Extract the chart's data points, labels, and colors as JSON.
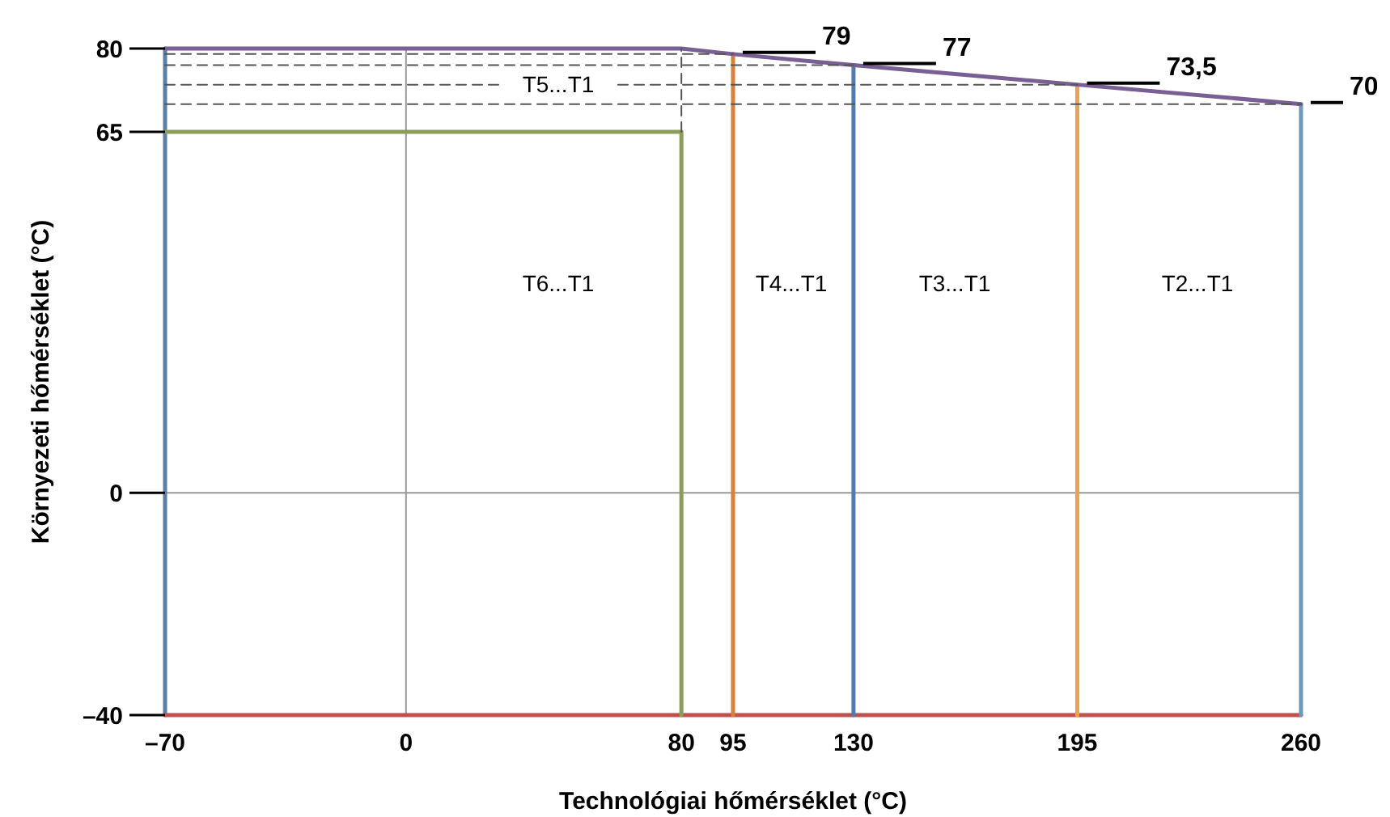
{
  "chart_data": {
    "type": "line",
    "xlabel": "Technológiai hőmérséklet (°C)",
    "ylabel": "Környezeti hőmérséklet (°C)",
    "xlim": [
      -70,
      260
    ],
    "ylim": [
      -40,
      80
    ],
    "xticks": [
      {
        "value": -70,
        "label": "–70"
      },
      0,
      80,
      95,
      130,
      195,
      260
    ],
    "yticks": [
      {
        "value": -40,
        "label": "–40"
      },
      0,
      65,
      80
    ],
    "grid": false,
    "marker": "none",
    "series": [
      {
        "color": "#999999",
        "line_style": "solid",
        "x": [
          0,
          0
        ],
        "values": [
          -40,
          80
        ]
      },
      {
        "color": "#999999",
        "line_style": "solid",
        "x": [
          -70,
          260
        ],
        "values": [
          0,
          0
        ]
      },
      {
        "color": "#5b7fa6",
        "x": [
          -70,
          -70
        ],
        "values": [
          -40,
          80
        ]
      },
      {
        "color": "#c0504d",
        "x": [
          -70,
          260
        ],
        "values": [
          -40,
          -40
        ]
      },
      {
        "color": "#8c9c5a",
        "x": [
          -70,
          80,
          80
        ],
        "values": [
          65,
          65,
          -40
        ]
      },
      {
        "color": "#d4823e",
        "x": [
          95,
          95
        ],
        "values": [
          -40,
          79
        ]
      },
      {
        "color": "#4f7db0",
        "x": [
          130,
          130
        ],
        "values": [
          -40,
          77
        ]
      },
      {
        "color": "#f0a04e",
        "x": [
          195,
          195
        ],
        "values": [
          -40,
          73.5
        ]
      },
      {
        "color": "#6f99b8",
        "x": [
          260,
          260
        ],
        "values": [
          -40,
          70
        ]
      },
      {
        "color": "#7a5f95",
        "x": [
          -70,
          80,
          95,
          130,
          195,
          260
        ],
        "values": [
          80,
          80,
          79,
          77,
          73.5,
          70
        ]
      },
      {
        "color": "#555555",
        "line_style": "dashed",
        "x": [
          -70,
          95
        ],
        "values": [
          79,
          79
        ]
      },
      {
        "color": "#555555",
        "line_style": "dashed",
        "x": [
          -70,
          130
        ],
        "values": [
          77,
          77
        ]
      },
      {
        "color": "#555555",
        "line_style": "dashed",
        "x": [
          -70,
          195
        ],
        "values": [
          73.5,
          73.5
        ]
      },
      {
        "color": "#555555",
        "line_style": "dashed",
        "x": [
          -70,
          260
        ],
        "values": [
          70,
          70
        ]
      },
      {
        "color": "#555555",
        "line_style": "dashed",
        "x": [
          80,
          80
        ],
        "values": [
          65,
          80
        ]
      }
    ],
    "annotations": [
      {
        "text": "79",
        "x": 95,
        "y": 79
      },
      {
        "text": "77",
        "x": 130,
        "y": 77
      },
      {
        "text": "73,5",
        "x": 195,
        "y": 73.5
      },
      {
        "text": "70",
        "x": 260,
        "y": 70
      },
      "T5...T1",
      "T6...T1",
      "T4...T1",
      "T3...T1",
      "T2...T1"
    ]
  }
}
